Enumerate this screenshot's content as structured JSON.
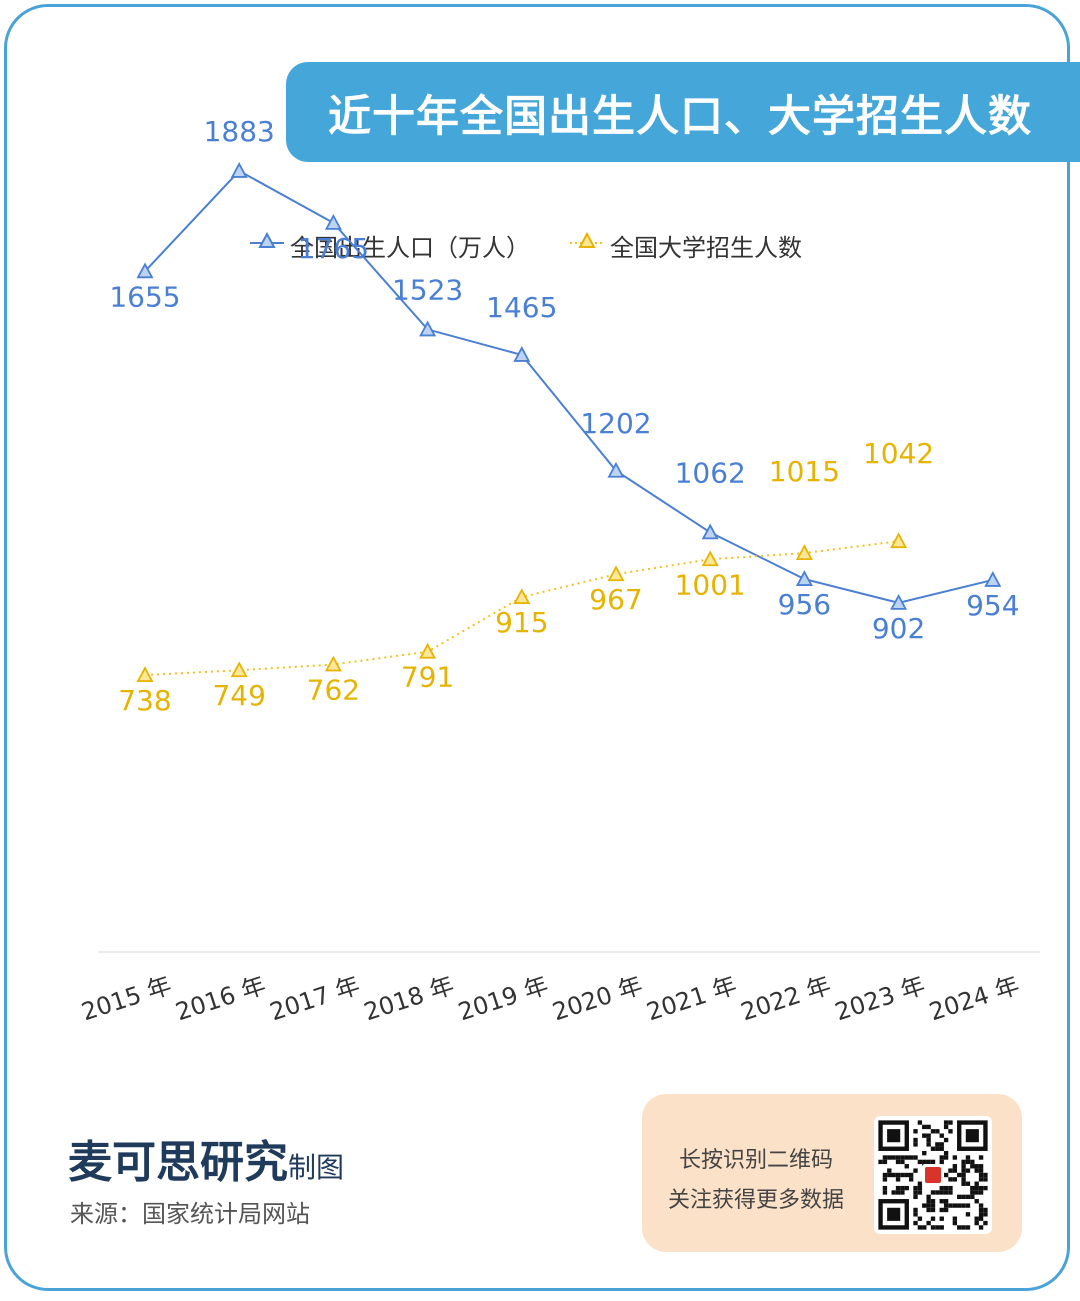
{
  "title": "近十年全国出生人口、大学招生人数",
  "legend": {
    "items": [
      "全国出生人口（万人）",
      "全国大学招生人数"
    ]
  },
  "chart_data": {
    "type": "line",
    "title": "近十年全国出生人口、大学招生人数",
    "categories": [
      "2015 年",
      "2016 年",
      "2017 年",
      "2018 年",
      "2019 年",
      "2020 年",
      "2021 年",
      "2022 年",
      "2023 年",
      "2024 年"
    ],
    "series": [
      {
        "name": "全国出生人口（万人）",
        "values": [
          1655,
          1883,
          1765,
          1523,
          1465,
          1202,
          1062,
          956,
          902,
          954
        ],
        "color": "#4a7fd4"
      },
      {
        "name": "全国大学招生人数",
        "values": [
          738,
          749,
          762,
          791,
          915,
          967,
          1001,
          1015,
          1042,
          null
        ],
        "color": "#f2c21b"
      }
    ],
    "ylim": [
      0,
      2000
    ],
    "grid": false,
    "legend_position": "top"
  },
  "footer": {
    "brand": "麦可思研究",
    "brand_suffix": "制图",
    "source": "来源：国家统计局网站"
  },
  "qr": {
    "line1": "长按识别二维码",
    "line2": "关注获得更多数据"
  }
}
